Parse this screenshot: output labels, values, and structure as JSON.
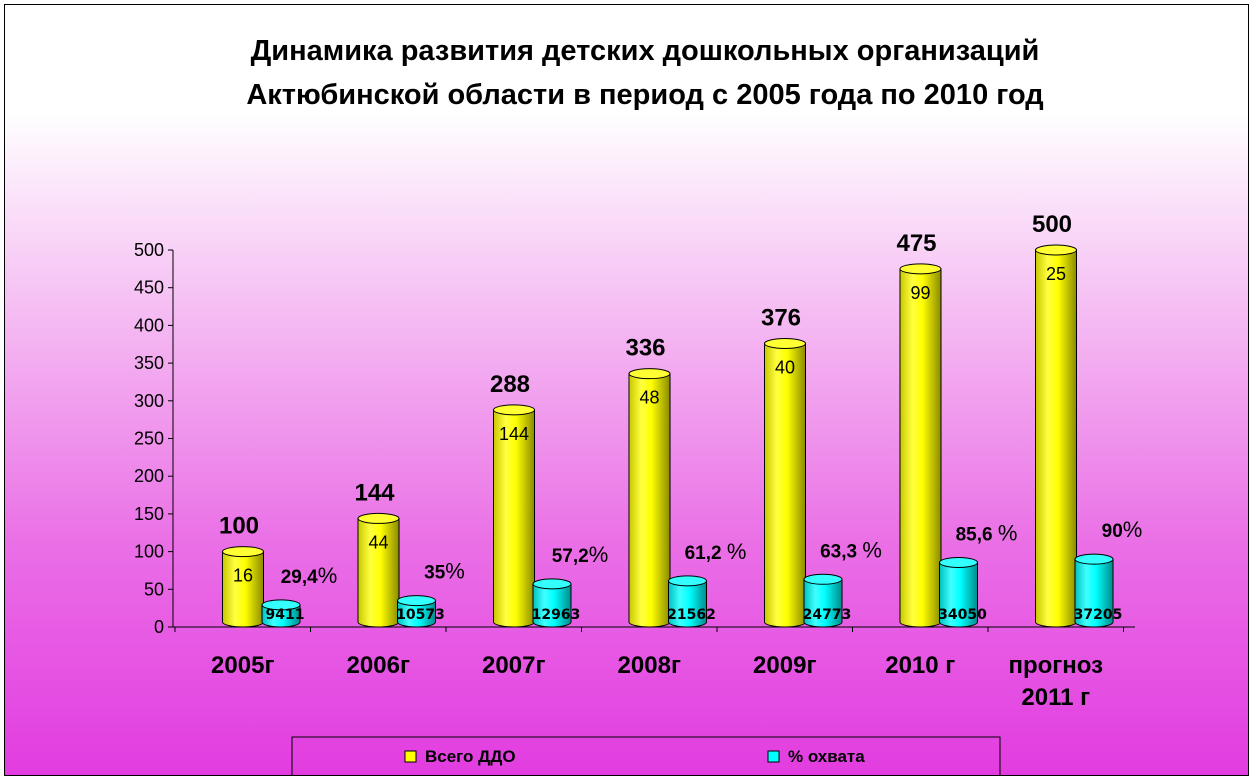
{
  "chart_data": {
    "type": "bar",
    "title": [
      "Динамика развития детских дошкольных организаций",
      "Актюбинской области в период с 2005 года по 2010 год"
    ],
    "categories": [
      [
        "2005г"
      ],
      [
        "2006г"
      ],
      [
        "2007г"
      ],
      [
        "2008г"
      ],
      [
        "2009г"
      ],
      [
        "2010 г"
      ],
      [
        "прогноз",
        "2011 г"
      ]
    ],
    "ylim": [
      0,
      500
    ],
    "yticks": [
      0,
      50,
      100,
      150,
      200,
      250,
      300,
      350,
      400,
      450,
      500
    ],
    "grid": false,
    "legend_position": "bottom",
    "series": [
      {
        "name": "Всего ДДО",
        "color": "#ffff00",
        "values": [
          100,
          144,
          288,
          336,
          376,
          475,
          500
        ],
        "value_labels": [
          "100",
          "144",
          "288",
          "336",
          "376",
          "475",
          "500"
        ],
        "inner_labels": [
          "16",
          "44",
          "144",
          "48",
          "40",
          "99",
          "25"
        ]
      },
      {
        "name": "% охвата",
        "color": "#00ffff",
        "values": [
          29.4,
          35,
          57.2,
          61.2,
          63.3,
          85.6,
          90
        ],
        "value_labels": [
          [
            "29,4",
            "%"
          ],
          [
            "35",
            "%"
          ],
          [
            "57,2",
            "%"
          ],
          [
            "61,2 ",
            "%"
          ],
          [
            "63,3 ",
            "%"
          ],
          [
            "85,6 ",
            "%"
          ],
          [
            "90",
            "%"
          ]
        ],
        "inner_labels": [
          "9411",
          "10573",
          "12963",
          "21562",
          "24773",
          "34050",
          "37205"
        ]
      }
    ]
  }
}
